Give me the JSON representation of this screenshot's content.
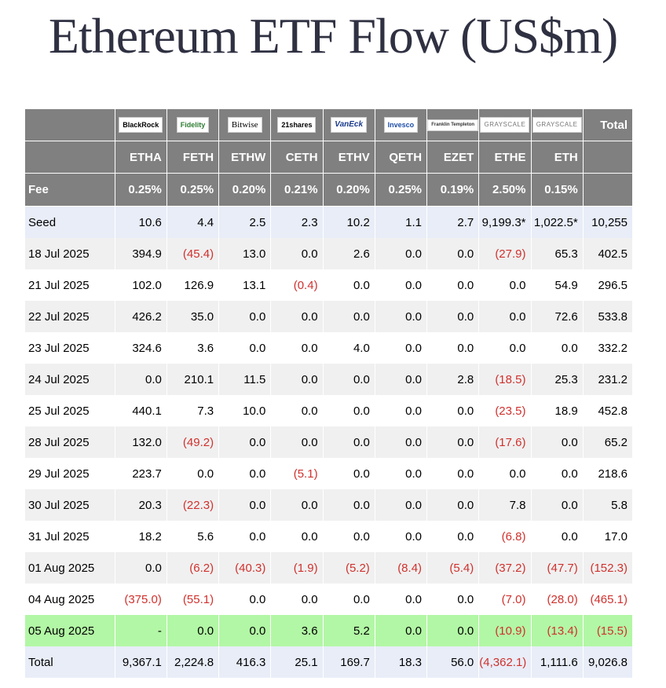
{
  "title": "Ethereum ETF Flow (US$m)",
  "colors": {
    "header_bg": "#808080",
    "negative": "#d0312d",
    "highlight_row": "#b2f7a5",
    "seed_total_row": "#e8edf8"
  },
  "chart_data": {
    "type": "table",
    "title": "Ethereum ETF Flow (US$m)",
    "issuers": [
      "BlackRock",
      "Fidelity",
      "Bitwise",
      "21shares",
      "VanEck",
      "Invesco",
      "Franklin Templeton",
      "GRAYSCALE",
      "GRAYSCALE"
    ],
    "tickers": [
      "ETHA",
      "FETH",
      "ETHW",
      "CETH",
      "ETHV",
      "QETH",
      "EZET",
      "ETHE",
      "ETH"
    ],
    "total_header": "Total",
    "fee_label": "Fee",
    "fees": [
      "0.25%",
      "0.25%",
      "0.20%",
      "0.21%",
      "0.20%",
      "0.25%",
      "0.19%",
      "2.50%",
      "0.15%"
    ],
    "rows": [
      {
        "label": "Seed",
        "values": [
          "10.6",
          "4.4",
          "2.5",
          "2.3",
          "10.2",
          "1.1",
          "2.7",
          "9,199.3*",
          "1,022.5*"
        ],
        "total": "10,255"
      },
      {
        "label": "18 Jul 2025",
        "values": [
          "394.9",
          "(45.4)",
          "13.0",
          "0.0",
          "2.6",
          "0.0",
          "0.0",
          "(27.9)",
          "65.3"
        ],
        "total": "402.5"
      },
      {
        "label": "21 Jul 2025",
        "values": [
          "102.0",
          "126.9",
          "13.1",
          "(0.4)",
          "0.0",
          "0.0",
          "0.0",
          "0.0",
          "54.9"
        ],
        "total": "296.5"
      },
      {
        "label": "22 Jul 2025",
        "values": [
          "426.2",
          "35.0",
          "0.0",
          "0.0",
          "0.0",
          "0.0",
          "0.0",
          "0.0",
          "72.6"
        ],
        "total": "533.8"
      },
      {
        "label": "23 Jul 2025",
        "values": [
          "324.6",
          "3.6",
          "0.0",
          "0.0",
          "4.0",
          "0.0",
          "0.0",
          "0.0",
          "0.0"
        ],
        "total": "332.2"
      },
      {
        "label": "24 Jul 2025",
        "values": [
          "0.0",
          "210.1",
          "11.5",
          "0.0",
          "0.0",
          "0.0",
          "2.8",
          "(18.5)",
          "25.3"
        ],
        "total": "231.2"
      },
      {
        "label": "25 Jul 2025",
        "values": [
          "440.1",
          "7.3",
          "10.0",
          "0.0",
          "0.0",
          "0.0",
          "0.0",
          "(23.5)",
          "18.9"
        ],
        "total": "452.8"
      },
      {
        "label": "28 Jul 2025",
        "values": [
          "132.0",
          "(49.2)",
          "0.0",
          "0.0",
          "0.0",
          "0.0",
          "0.0",
          "(17.6)",
          "0.0"
        ],
        "total": "65.2"
      },
      {
        "label": "29 Jul 2025",
        "values": [
          "223.7",
          "0.0",
          "0.0",
          "(5.1)",
          "0.0",
          "0.0",
          "0.0",
          "0.0",
          "0.0"
        ],
        "total": "218.6"
      },
      {
        "label": "30 Jul 2025",
        "values": [
          "20.3",
          "(22.3)",
          "0.0",
          "0.0",
          "0.0",
          "0.0",
          "0.0",
          "7.8",
          "0.0"
        ],
        "total": "5.8"
      },
      {
        "label": "31 Jul 2025",
        "values": [
          "18.2",
          "5.6",
          "0.0",
          "0.0",
          "0.0",
          "0.0",
          "0.0",
          "(6.8)",
          "0.0"
        ],
        "total": "17.0"
      },
      {
        "label": "01 Aug 2025",
        "values": [
          "0.0",
          "(6.2)",
          "(40.3)",
          "(1.9)",
          "(5.2)",
          "(8.4)",
          "(5.4)",
          "(37.2)",
          "(47.7)"
        ],
        "total": "(152.3)"
      },
      {
        "label": "04 Aug 2025",
        "values": [
          "(375.0)",
          "(55.1)",
          "0.0",
          "0.0",
          "0.0",
          "0.0",
          "0.0",
          "(7.0)",
          "(28.0)"
        ],
        "total": "(465.1)"
      },
      {
        "label": "05 Aug 2025",
        "values": [
          "-",
          "0.0",
          "0.0",
          "3.6",
          "5.2",
          "0.0",
          "0.0",
          "(10.9)",
          "(13.4)"
        ],
        "total": "(15.5)",
        "highlight": true
      },
      {
        "label": "Total",
        "values": [
          "9,367.1",
          "2,224.8",
          "416.3",
          "25.1",
          "169.7",
          "18.3",
          "56.0",
          "(4,362.1)",
          "1,111.6"
        ],
        "total": "9,026.8"
      }
    ]
  }
}
